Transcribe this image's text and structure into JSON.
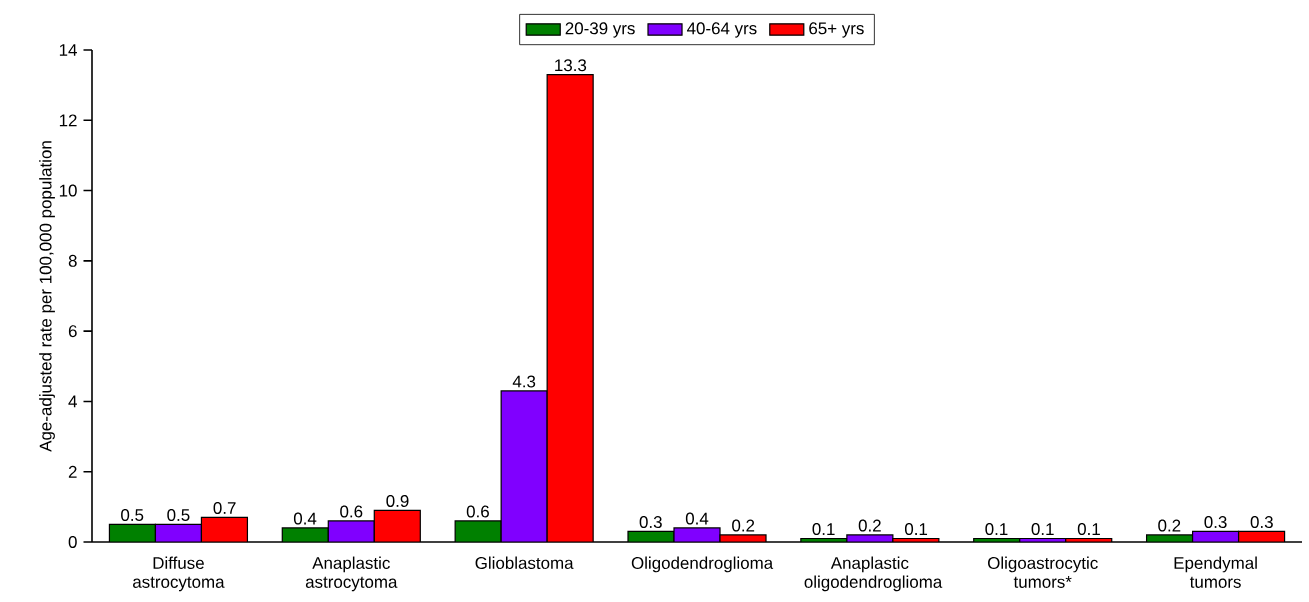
{
  "chart_data": {
    "type": "bar",
    "ylabel": "Age-adjusted rate per 100,000 population",
    "categories": [
      "Diffuse astrocytoma",
      "Anaplastic astrocytoma",
      "Glioblastoma",
      "Oligodendroglioma",
      "Anaplastic oligodendroglioma",
      "Oligoastrocytic tumors*",
      "Ependymal tumors"
    ],
    "series": [
      {
        "name": "20-39 yrs",
        "color": "#008000",
        "values": [
          0.5,
          0.4,
          0.6,
          0.3,
          0.1,
          0.1,
          0.2
        ]
      },
      {
        "name": "40-64 yrs",
        "color": "#8000ff",
        "values": [
          0.5,
          0.6,
          4.3,
          0.4,
          0.2,
          0.1,
          0.3
        ]
      },
      {
        "name": "65+ yrs",
        "color": "#ff0000",
        "values": [
          0.7,
          0.9,
          13.3,
          0.2,
          0.1,
          0.1,
          0.3
        ]
      }
    ],
    "ylim": [
      0,
      14
    ],
    "yticks": [
      0,
      2,
      4,
      6,
      8,
      10,
      12,
      14
    ],
    "data_labels": true,
    "legend": "top",
    "grid": false
  }
}
